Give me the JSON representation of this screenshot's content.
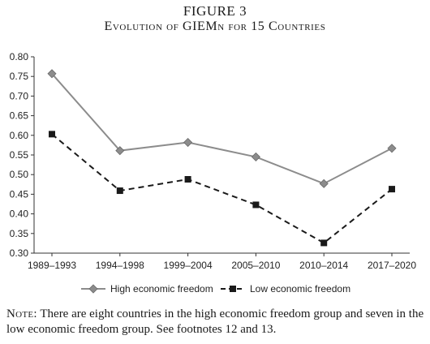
{
  "figure": {
    "label": "FIGURE 3",
    "caption": "Evolution of GIEMn for 15 Countries"
  },
  "chart_data": {
    "type": "line",
    "title": "Evolution of GIEMn for 15 Countries",
    "xlabel": "",
    "ylabel": "",
    "categories": [
      "1989–1993",
      "1994–1998",
      "1999–2004",
      "2005–2010",
      "2010–2014",
      "2017–2020"
    ],
    "ylim": [
      0.3,
      0.8
    ],
    "yticks": [
      "0.30",
      "0.35",
      "0.40",
      "0.45",
      "0.50",
      "0.55",
      "0.60",
      "0.65",
      "0.70",
      "0.75",
      "0.80"
    ],
    "grid": false,
    "legend_position": "bottom",
    "series": [
      {
        "name": "High economic freedom",
        "values": [
          0.757,
          0.561,
          0.582,
          0.545,
          0.477,
          0.567
        ],
        "line_style": "solid",
        "marker": "diamond",
        "color": "#8c8c8c"
      },
      {
        "name": "Low economic freedom",
        "values": [
          0.603,
          0.459,
          0.488,
          0.423,
          0.326,
          0.463
        ],
        "line_style": "dashed",
        "marker": "square",
        "color": "#1a1a1a"
      }
    ]
  },
  "note": {
    "lead": "Note:",
    "text": " There are eight countries in the high economic freedom group and seven in the low economic freedom group. See footnotes 12 and 13."
  }
}
